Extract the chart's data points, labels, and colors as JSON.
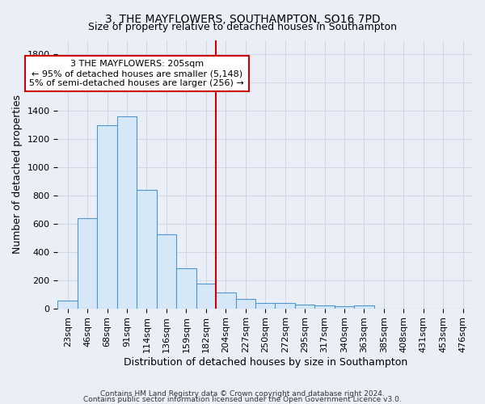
{
  "title": "3, THE MAYFLOWERS, SOUTHAMPTON, SO16 7PD",
  "subtitle": "Size of property relative to detached houses in Southampton",
  "xlabel": "Distribution of detached houses by size in Southampton",
  "ylabel": "Number of detached properties",
  "bar_labels": [
    "23sqm",
    "46sqm",
    "68sqm",
    "91sqm",
    "114sqm",
    "136sqm",
    "159sqm",
    "182sqm",
    "204sqm",
    "227sqm",
    "250sqm",
    "272sqm",
    "295sqm",
    "317sqm",
    "340sqm",
    "363sqm",
    "385sqm",
    "408sqm",
    "431sqm",
    "453sqm",
    "476sqm"
  ],
  "bar_values": [
    55,
    640,
    1300,
    1360,
    840,
    525,
    285,
    175,
    110,
    65,
    40,
    35,
    28,
    20,
    14,
    20,
    0,
    0,
    0,
    0,
    0
  ],
  "bar_color_fill": "#d6e8f7",
  "bar_color_edge": "#4f96d0",
  "vline_x_index": 8,
  "vline_color": "#cc0000",
  "ylim": [
    0,
    1900
  ],
  "yticks": [
    0,
    200,
    400,
    600,
    800,
    1000,
    1200,
    1400,
    1600,
    1800
  ],
  "annotation_text": "3 THE MAYFLOWERS: 205sqm\n← 95% of detached houses are smaller (5,148)\n5% of semi-detached houses are larger (256) →",
  "annotation_box_facecolor": "#ffffff",
  "annotation_box_edgecolor": "#cc0000",
  "bg_color": "#eaeff7",
  "grid_color": "#d0d8e8",
  "footer_line1": "Contains HM Land Registry data © Crown copyright and database right 2024.",
  "footer_line2": "Contains public sector information licensed under the Open Government Licence v3.0.",
  "title_fontsize": 10,
  "subtitle_fontsize": 9,
  "xlabel_fontsize": 9,
  "ylabel_fontsize": 9,
  "tick_fontsize": 8,
  "annotation_fontsize": 8,
  "footer_fontsize": 6.5
}
